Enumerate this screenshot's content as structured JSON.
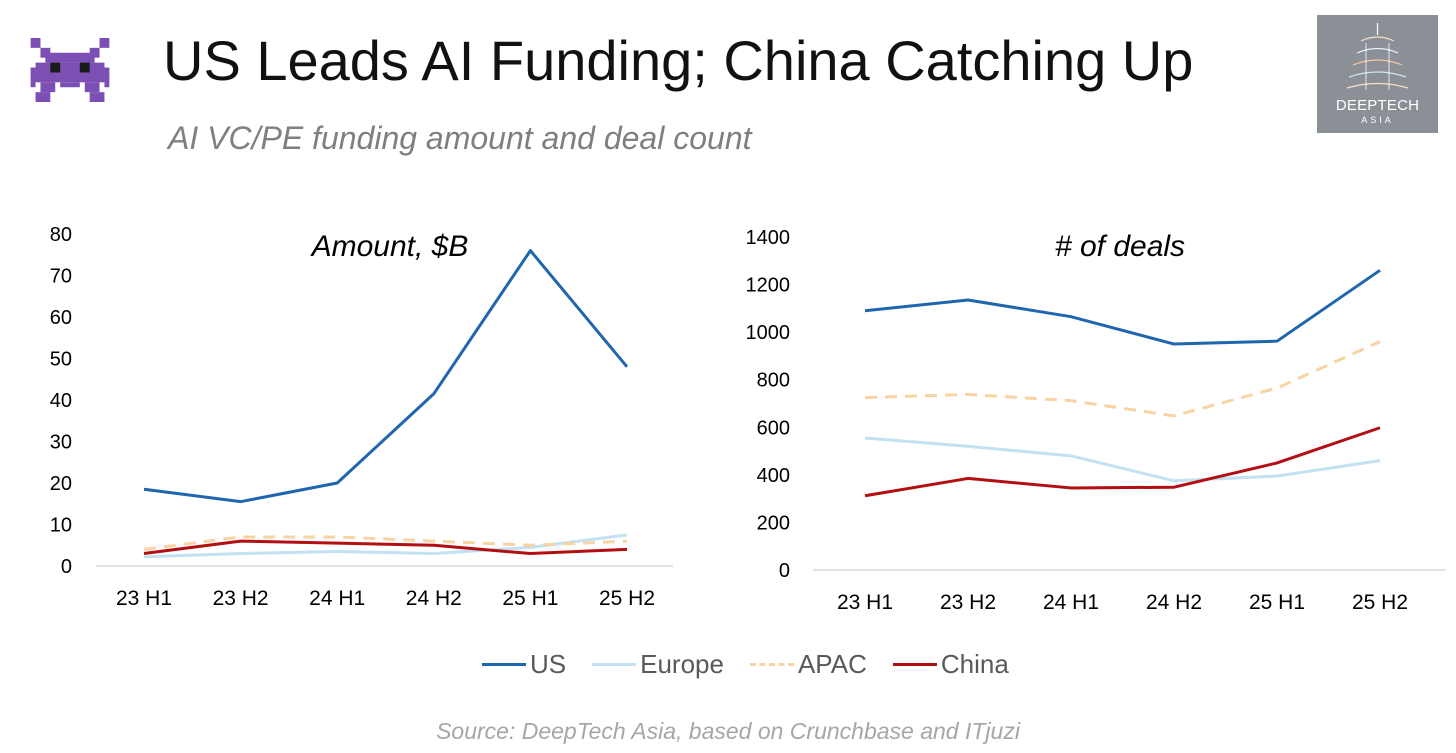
{
  "header": {
    "title": "US Leads AI Funding; China Catching Up",
    "subtitle": "AI VC/PE funding amount and deal count"
  },
  "logo": {
    "main": "DEEPTECH",
    "sub": "ASIA"
  },
  "source": "Source: DeepTech Asia, based on Crunchbase and ITjuzi",
  "colors": {
    "US": "#1f66ae",
    "Europe": "#c2e1f2",
    "APAC": "#f8d3a3",
    "China": "#b30f12"
  },
  "chart_data": [
    {
      "type": "line",
      "title": "Amount, $B",
      "xlabel": "",
      "ylabel": "",
      "categories": [
        "23 H1",
        "23 H2",
        "24 H1",
        "24 H2",
        "25 H1",
        "25 H2"
      ],
      "ylim": [
        0,
        80
      ],
      "yticks": [
        0,
        10,
        20,
        30,
        40,
        50,
        60,
        70,
        80
      ],
      "series": [
        {
          "name": "US",
          "values": [
            18.5,
            15.5,
            20,
            41.5,
            76,
            48
          ]
        },
        {
          "name": "Europe",
          "values": [
            2.2,
            3,
            3.5,
            3,
            4.5,
            7.5
          ]
        },
        {
          "name": "APAC",
          "values": [
            4,
            7,
            7,
            6,
            5,
            6
          ]
        },
        {
          "name": "China",
          "values": [
            3,
            6,
            5.5,
            5,
            3,
            4
          ]
        }
      ]
    },
    {
      "type": "line",
      "title": "# of deals",
      "xlabel": "",
      "ylabel": "",
      "categories": [
        "23 H1",
        "23 H2",
        "24 H1",
        "24 H2",
        "25 H1",
        "25 H2"
      ],
      "ylim": [
        0,
        1400
      ],
      "yticks": [
        0,
        200,
        400,
        600,
        800,
        1000,
        1200,
        1400
      ],
      "series": [
        {
          "name": "US",
          "values": [
            1090,
            1135,
            1065,
            950,
            962,
            1260
          ]
        },
        {
          "name": "Europe",
          "values": [
            555,
            520,
            480,
            375,
            395,
            460
          ]
        },
        {
          "name": "APAC",
          "values": [
            725,
            738,
            712,
            648,
            765,
            960
          ]
        },
        {
          "name": "China",
          "values": [
            312,
            385,
            345,
            348,
            450,
            598
          ]
        }
      ]
    }
  ],
  "legend": [
    {
      "name": "US"
    },
    {
      "name": "Europe"
    },
    {
      "name": "APAC"
    },
    {
      "name": "China"
    }
  ]
}
